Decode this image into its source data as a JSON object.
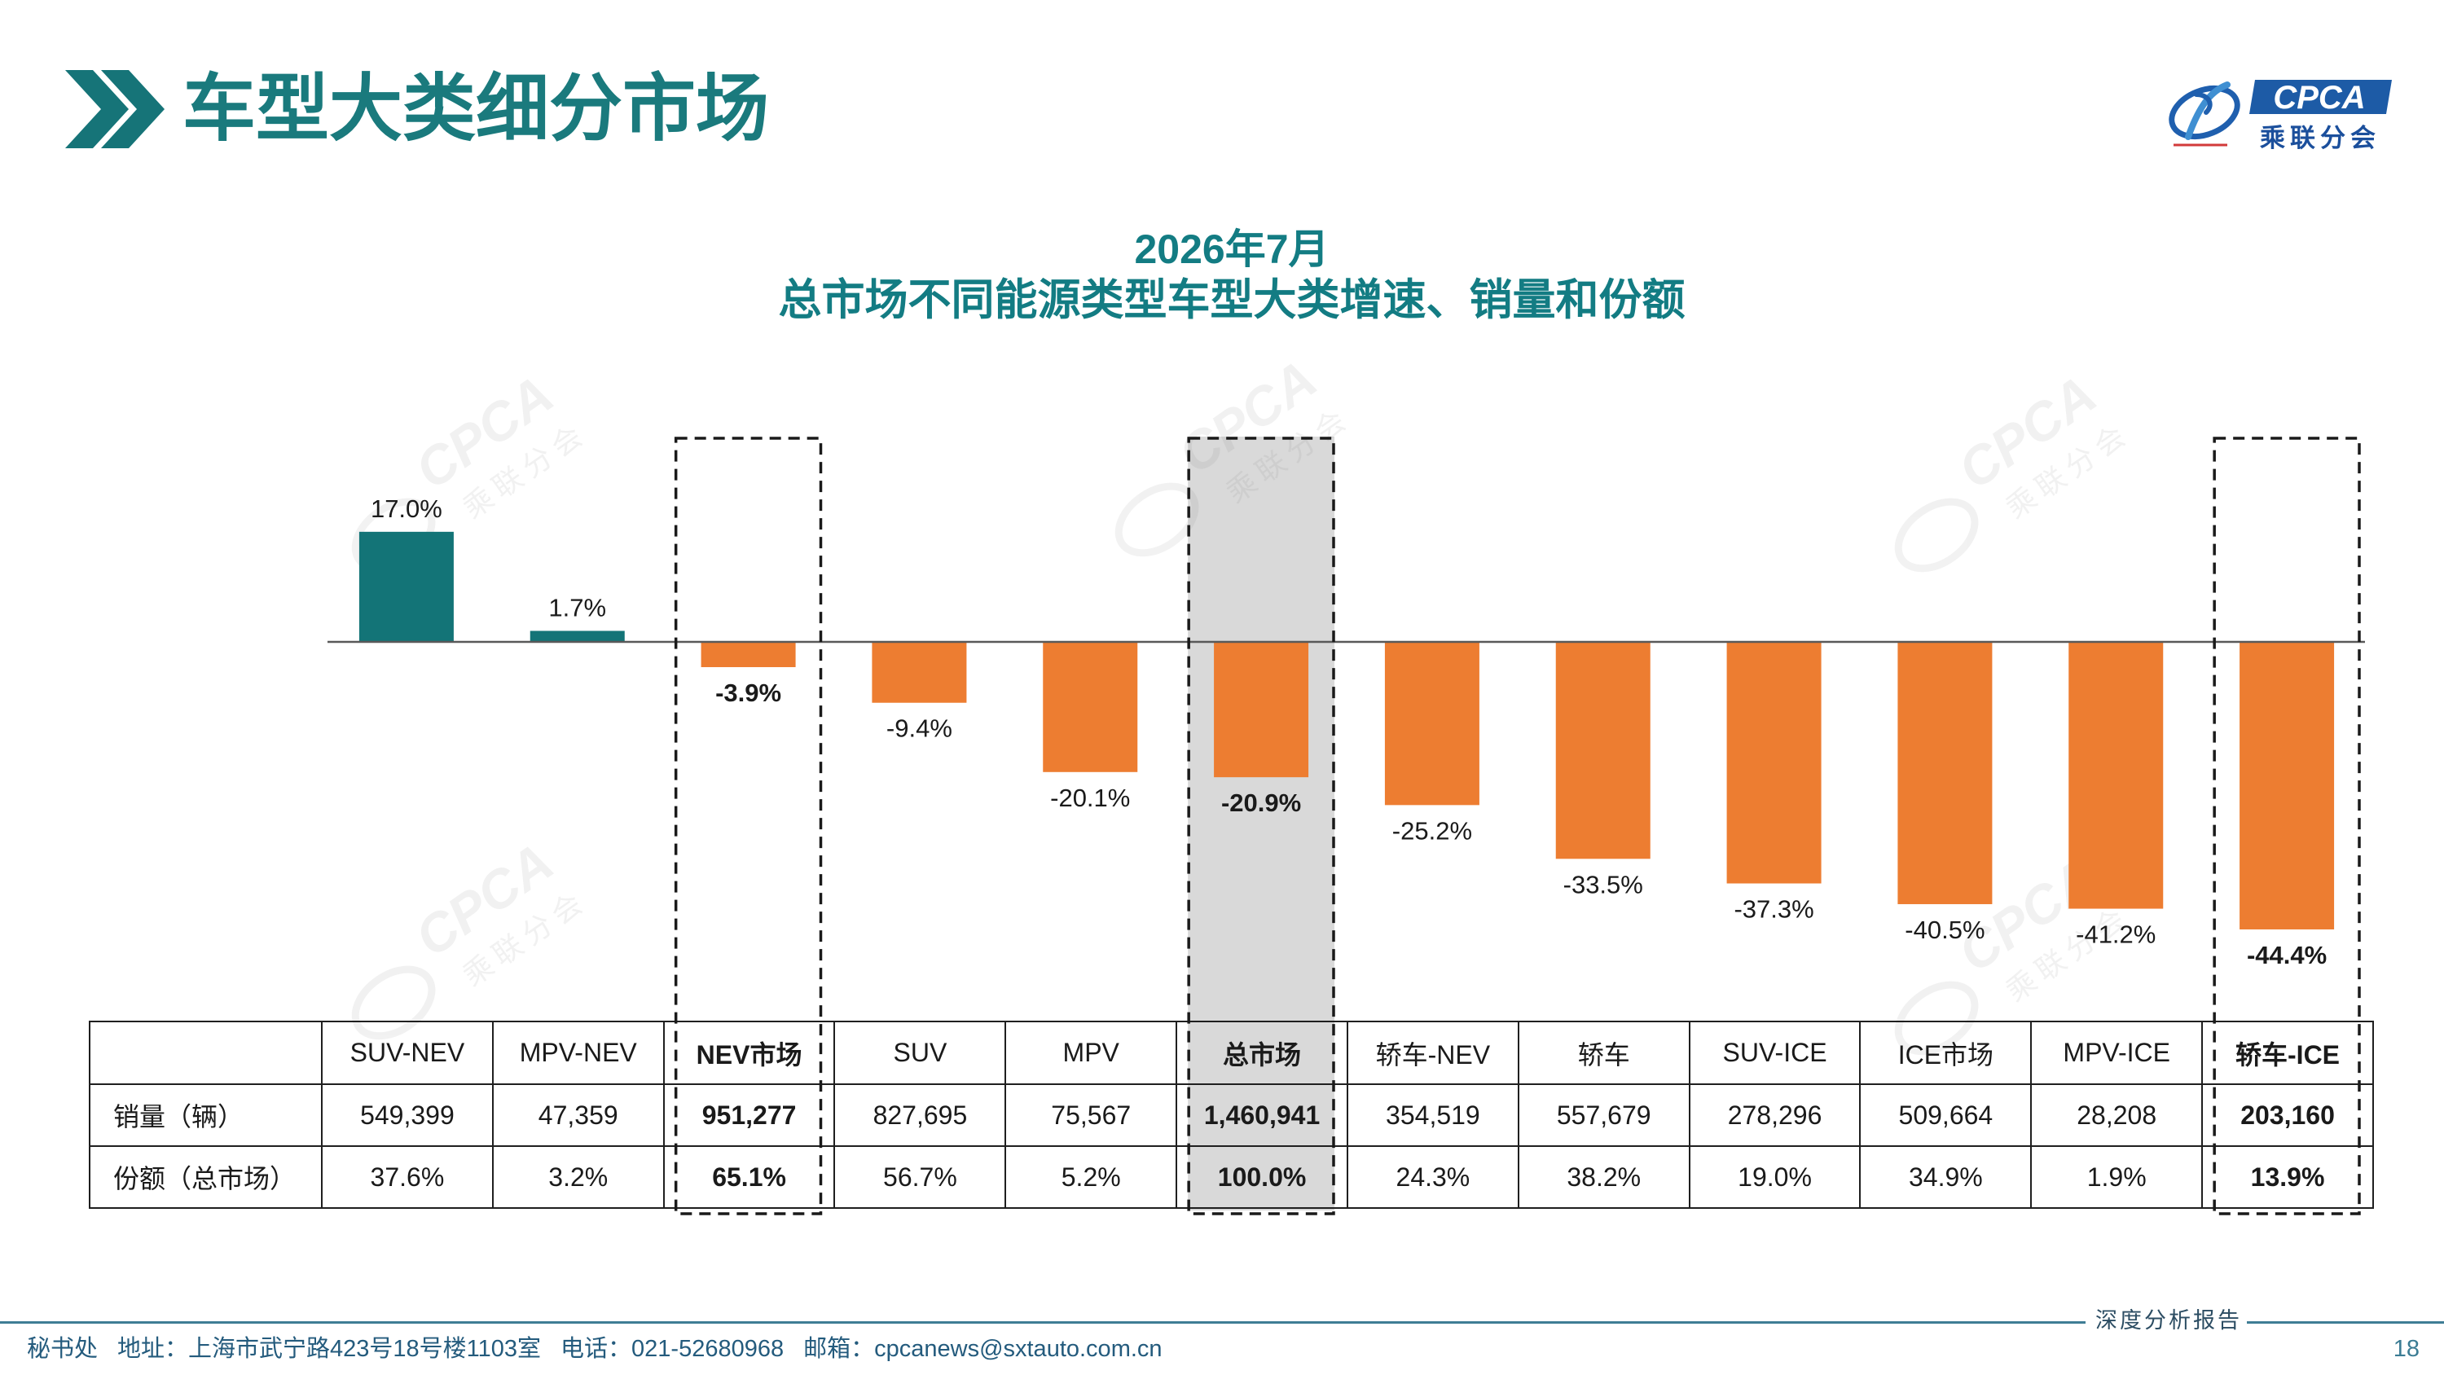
{
  "header": {
    "title": "车型大类细分市场"
  },
  "icons": {
    "header_marker": "double-chevron-icon",
    "brand_logo": "cpca-logo"
  },
  "logo": {
    "text": "CPCA",
    "subtext": "乘联分会"
  },
  "watermark": {
    "text": "CPCA",
    "subtext": "乘联分会"
  },
  "chart_data": {
    "type": "bar",
    "title": "2026年7月",
    "subtitle": "总市场不同能源类型车型大类增速、销量和份额",
    "categories": [
      "SUV-NEV",
      "MPV-NEV",
      "NEV市场",
      "SUV",
      "MPV",
      "总市场",
      "轿车-NEV",
      "轿车",
      "SUV-ICE",
      "ICE市场",
      "MPV-ICE",
      "轿车-ICE"
    ],
    "values": [
      17.0,
      1.7,
      -3.9,
      -9.4,
      -20.1,
      -20.9,
      -25.2,
      -33.5,
      -37.3,
      -40.5,
      -41.2,
      -44.4
    ],
    "value_unit": "%",
    "positive_color": "#137477",
    "negative_color": "#ED7D31",
    "shade_color": "#D9D9D9",
    "highlighted": [
      "NEV市场",
      "总市场",
      "轿车-ICE"
    ],
    "shaded": "总市场",
    "grid": false,
    "legend": "none",
    "xlabel": "",
    "ylabel": "",
    "table": {
      "row_labels": [
        "销量（辆）",
        "份额（总市场）"
      ],
      "sales": [
        549399,
        47359,
        951277,
        827695,
        75567,
        1460941,
        354519,
        557679,
        278296,
        509664,
        28208,
        203160
      ],
      "share": [
        37.6,
        3.2,
        65.1,
        56.7,
        5.2,
        100.0,
        24.3,
        38.2,
        19.0,
        34.9,
        1.9,
        13.9
      ]
    }
  },
  "footer": {
    "secretariat": "秘书处",
    "address": "地址：上海市武宁路423号18号楼1103室",
    "phone": "电话：021-52680968",
    "email": "邮箱：cpcanews@sxtauto.com.cn",
    "report_type": "深度分析报告",
    "page_number": "18"
  }
}
